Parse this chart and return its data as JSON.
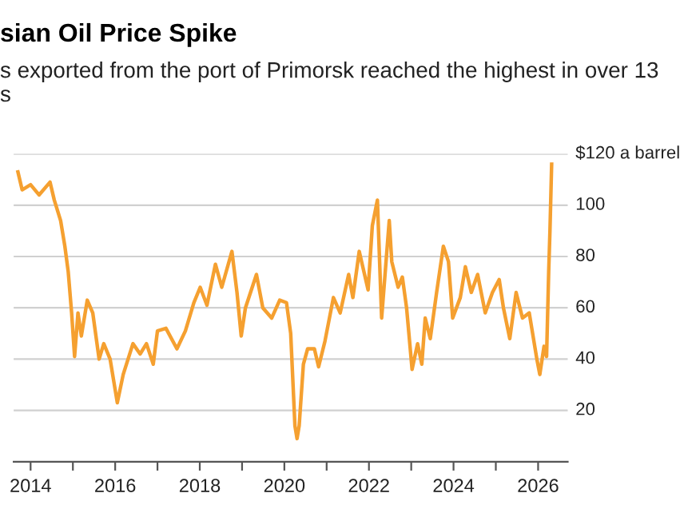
{
  "chart_data": {
    "type": "line",
    "title": "sian Oil Price Spike",
    "subtitle": "s exported from the port of Primorsk reached the highest in over 13\ns",
    "xlim": [
      2013.6,
      2026.7
    ],
    "xticks": [
      {
        "value": 2014,
        "label": "2014"
      },
      {
        "value": 2015,
        "label": null
      },
      {
        "value": 2016,
        "label": "2016"
      },
      {
        "value": 2017,
        "label": null
      },
      {
        "value": 2018,
        "label": "2018"
      },
      {
        "value": 2019,
        "label": null
      },
      {
        "value": 2020,
        "label": "2020"
      },
      {
        "value": 2021,
        "label": null
      },
      {
        "value": 2022,
        "label": "2022"
      },
      {
        "value": 2023,
        "label": null
      },
      {
        "value": 2024,
        "label": "2024"
      },
      {
        "value": 2025,
        "label": null
      },
      {
        "value": 2026,
        "label": "2026"
      }
    ],
    "ylim": [
      0,
      120
    ],
    "yticks": [
      {
        "value": 20,
        "label": "20"
      },
      {
        "value": 40,
        "label": "40"
      },
      {
        "value": 60,
        "label": "60"
      },
      {
        "value": 80,
        "label": "80"
      },
      {
        "value": 100,
        "label": "100"
      },
      {
        "value": 120,
        "label": "$120 a barrel"
      }
    ],
    "grid": "y",
    "marker": "none",
    "line_style": "solid",
    "series": [
      {
        "color": "#f5a030",
        "x": [
          2013.7,
          2013.8,
          2014.0,
          2014.2,
          2014.46,
          2014.56,
          2014.71,
          2014.81,
          2014.89,
          2014.97,
          2015.04,
          2015.12,
          2015.2,
          2015.34,
          2015.47,
          2015.62,
          2015.73,
          2015.88,
          2016.05,
          2016.19,
          2016.42,
          2016.59,
          2016.74,
          2016.9,
          2017.0,
          2017.2,
          2017.46,
          2017.66,
          2017.86,
          2018.01,
          2018.17,
          2018.37,
          2018.52,
          2018.76,
          2018.88,
          2018.98,
          2019.08,
          2019.34,
          2019.49,
          2019.7,
          2019.89,
          2020.05,
          2020.15,
          2020.25,
          2020.3,
          2020.35,
          2020.45,
          2020.55,
          2020.71,
          2020.81,
          2020.96,
          2021.16,
          2021.32,
          2021.52,
          2021.62,
          2021.77,
          2021.98,
          2022.08,
          2022.2,
          2022.3,
          2022.48,
          2022.54,
          2022.69,
          2022.79,
          2022.89,
          2023.02,
          2023.15,
          2023.25,
          2023.33,
          2023.45,
          2023.6,
          2023.76,
          2023.88,
          2023.98,
          2024.16,
          2024.28,
          2024.42,
          2024.57,
          2024.75,
          2024.92,
          2025.08,
          2025.18,
          2025.33,
          2025.48,
          2025.63,
          2025.79,
          2025.89,
          2025.97,
          2026.04,
          2026.14,
          2026.2,
          2026.25,
          2026.28,
          2026.32
        ],
        "values": [
          113,
          106,
          108,
          104,
          109,
          102,
          94,
          84,
          74,
          58,
          41,
          58,
          49,
          63,
          58,
          40,
          46,
          40,
          23,
          34,
          46,
          42,
          46,
          38,
          51,
          52,
          44,
          51,
          62,
          68,
          61,
          77,
          68,
          82,
          66,
          49,
          60,
          73,
          60,
          56,
          63,
          62,
          50,
          14,
          9,
          14,
          38,
          44,
          44,
          37,
          47,
          64,
          58,
          73,
          64,
          82,
          67,
          92,
          102,
          56,
          94,
          78,
          68,
          72,
          60,
          36,
          46,
          38,
          56,
          48,
          66,
          84,
          78,
          56,
          64,
          76,
          66,
          73,
          58,
          66,
          71,
          60,
          48,
          66,
          56,
          58,
          48,
          40,
          34,
          45,
          41,
          74,
          90,
          116
        ]
      }
    ]
  }
}
